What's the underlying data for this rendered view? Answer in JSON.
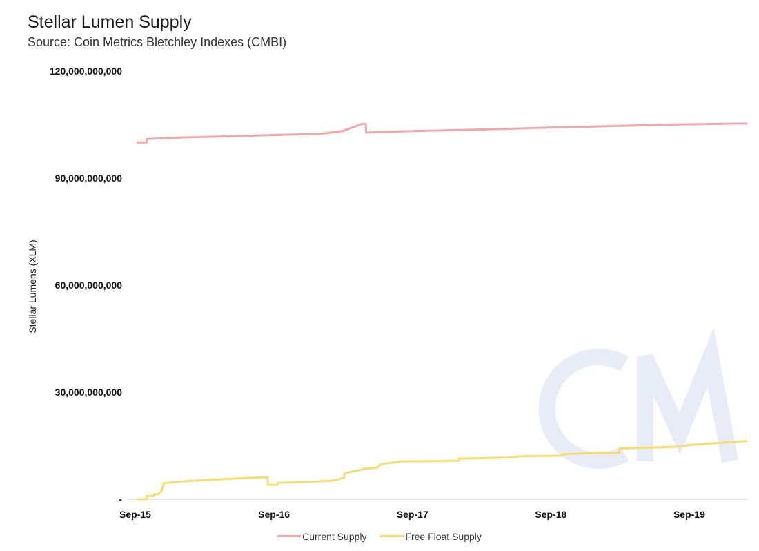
{
  "chart_data": {
    "type": "line",
    "title": "Stellar Lumen Supply",
    "subtitle": "Source: Coin Metrics Bletchley Indexes (CMBI)",
    "ylabel": "Stellar Lumens (XLM)",
    "xlabel": "",
    "ylim": [
      0,
      120000000000
    ],
    "xlim": [
      "2015-09",
      "2020-02"
    ],
    "y_ticks": [
      0,
      30000000000,
      60000000000,
      90000000000,
      120000000000
    ],
    "y_tick_labels": [
      "-",
      "30,000,000,000",
      "60,000,000,000",
      "90,000,000,000",
      "120,000,000,000"
    ],
    "x_ticks": [
      "2015-09",
      "2016-09",
      "2017-09",
      "2018-09",
      "2019-09"
    ],
    "x_tick_labels": [
      "Sep-15",
      "Sep-16",
      "Sep-17",
      "Sep-18",
      "Sep-19"
    ],
    "grid": false,
    "legend_position": "bottom",
    "watermark": "CM",
    "series": [
      {
        "name": "Current Supply",
        "color": "#f4a7a7",
        "points": [
          [
            "2015-09-05",
            100000000000
          ],
          [
            "2015-10-01",
            100000000000
          ],
          [
            "2015-10-02",
            101000000000
          ],
          [
            "2016-01-01",
            101400000000
          ],
          [
            "2016-06-01",
            101800000000
          ],
          [
            "2016-09-01",
            102100000000
          ],
          [
            "2017-01-01",
            102400000000
          ],
          [
            "2017-03-01",
            103200000000
          ],
          [
            "2017-04-01",
            104400000000
          ],
          [
            "2017-04-20",
            105200000000
          ],
          [
            "2017-05-01",
            105200000000
          ],
          [
            "2017-05-02",
            102800000000
          ],
          [
            "2017-09-01",
            103200000000
          ],
          [
            "2018-01-01",
            103500000000
          ],
          [
            "2018-06-01",
            103900000000
          ],
          [
            "2018-09-01",
            104200000000
          ],
          [
            "2019-01-01",
            104500000000
          ],
          [
            "2019-06-01",
            104900000000
          ],
          [
            "2019-09-01",
            105100000000
          ],
          [
            "2020-01-01",
            105300000000
          ],
          [
            "2020-02-01",
            105300000000
          ]
        ]
      },
      {
        "name": "Free Float Supply",
        "color": "#f9dd6c",
        "points": [
          [
            "2015-09-05",
            0
          ],
          [
            "2015-10-01",
            0
          ],
          [
            "2015-10-02",
            900000000
          ],
          [
            "2015-10-20",
            900000000
          ],
          [
            "2015-10-21",
            1400000000
          ],
          [
            "2015-11-01",
            1400000000
          ],
          [
            "2015-11-10",
            2400000000
          ],
          [
            "2015-11-15",
            4500000000
          ],
          [
            "2016-01-01",
            5000000000
          ],
          [
            "2016-03-01",
            5400000000
          ],
          [
            "2016-05-01",
            5700000000
          ],
          [
            "2016-07-01",
            6000000000
          ],
          [
            "2016-08-15",
            6200000000
          ],
          [
            "2016-08-16",
            4000000000
          ],
          [
            "2016-09-10",
            4000000000
          ],
          [
            "2016-09-11",
            4600000000
          ],
          [
            "2016-12-01",
            4900000000
          ],
          [
            "2017-02-01",
            5200000000
          ],
          [
            "2017-03-05",
            6000000000
          ],
          [
            "2017-03-06",
            7300000000
          ],
          [
            "2017-04-15",
            8200000000
          ],
          [
            "2017-05-01",
            8600000000
          ],
          [
            "2017-06-01",
            8900000000
          ],
          [
            "2017-06-10",
            9800000000
          ],
          [
            "2017-08-01",
            10600000000
          ],
          [
            "2018-01-01",
            10800000000
          ],
          [
            "2018-01-02",
            11400000000
          ],
          [
            "2018-06-01",
            11700000000
          ],
          [
            "2018-06-02",
            12000000000
          ],
          [
            "2018-10-01",
            12200000000
          ],
          [
            "2018-10-02",
            12600000000
          ],
          [
            "2019-01-01",
            13000000000
          ],
          [
            "2019-03-01",
            13000000000
          ],
          [
            "2019-03-02",
            14200000000
          ],
          [
            "2019-08-01",
            14700000000
          ],
          [
            "2019-09-01",
            15200000000
          ],
          [
            "2019-12-01",
            15900000000
          ],
          [
            "2020-02-01",
            16300000000
          ]
        ]
      }
    ]
  }
}
